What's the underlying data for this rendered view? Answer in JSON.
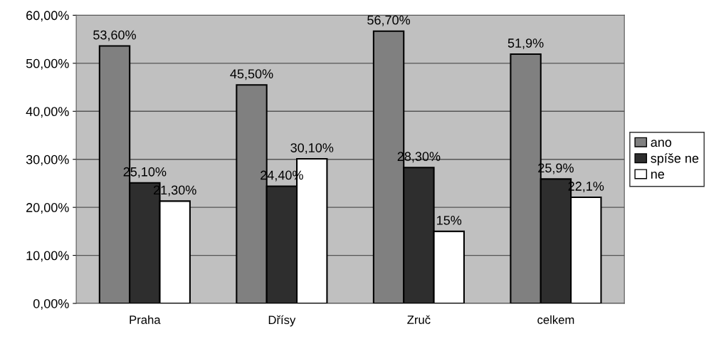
{
  "chart_data": {
    "type": "bar",
    "categories": [
      "Praha",
      "Dřísy",
      "Zruč",
      "celkem"
    ],
    "series": [
      {
        "name": "ano",
        "color": "#808080",
        "values": [
          53.6,
          45.5,
          56.7,
          51.9
        ],
        "value_labels": [
          "53,60%",
          "45,50%",
          "56,70%",
          "51,9%"
        ]
      },
      {
        "name": "spíše ne",
        "color": "#2e2e2e",
        "values": [
          25.1,
          24.4,
          28.3,
          25.9
        ],
        "value_labels": [
          "25,10%",
          "24,40%",
          "28,30%",
          "25,9%"
        ]
      },
      {
        "name": "ne",
        "color": "#ffffff",
        "values": [
          21.3,
          30.1,
          15,
          22.1
        ],
        "value_labels": [
          "21,30%",
          "30,10%",
          "15%",
          "22,1%"
        ]
      }
    ],
    "ylim": [
      0,
      60
    ],
    "yticks": [
      {
        "value": 0,
        "label": "0,00%"
      },
      {
        "value": 10,
        "label": "10,00%"
      },
      {
        "value": 20,
        "label": "20,00%"
      },
      {
        "value": 30,
        "label": "30,00%"
      },
      {
        "value": 40,
        "label": "40,00%"
      },
      {
        "value": 50,
        "label": "50,00%"
      },
      {
        "value": 60,
        "label": "60,00%"
      }
    ],
    "grid": "y",
    "legend": "right"
  }
}
